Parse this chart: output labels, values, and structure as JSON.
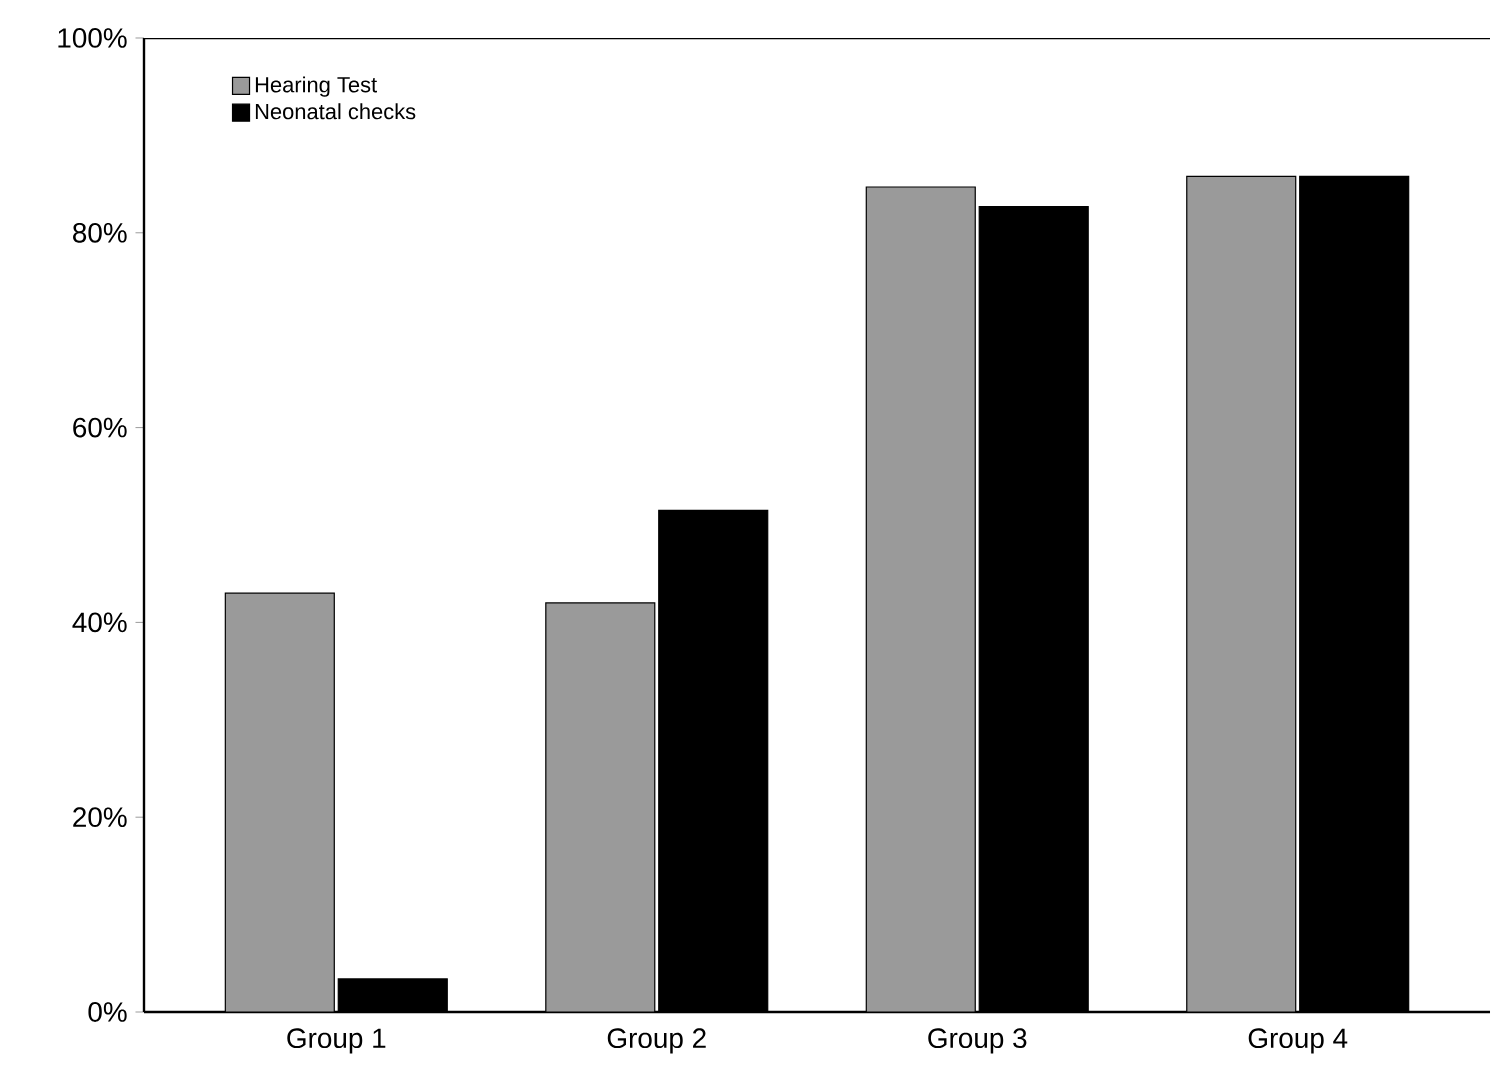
{
  "chart_data": {
    "type": "bar",
    "categories": [
      "Group 1",
      "Group 2",
      "Group 3",
      "Group 4"
    ],
    "series": [
      {
        "name": "Hearing Test",
        "color": "#9a9a9a",
        "values": [
          43,
          42,
          84.7,
          85.8
        ]
      },
      {
        "name": "Neonatal checks",
        "color": "#000000",
        "values": [
          3.4,
          51.5,
          82.7,
          85.8
        ]
      }
    ],
    "ylim": [
      0,
      100
    ],
    "yticks": [
      {
        "value": 0,
        "label": "0%"
      },
      {
        "value": 20,
        "label": "20%"
      },
      {
        "value": 40,
        "label": "40%"
      },
      {
        "value": 60,
        "label": "60%"
      },
      {
        "value": 80,
        "label": "80%"
      },
      {
        "value": 100,
        "label": "100%"
      }
    ],
    "legend": "top left",
    "grid": false
  }
}
